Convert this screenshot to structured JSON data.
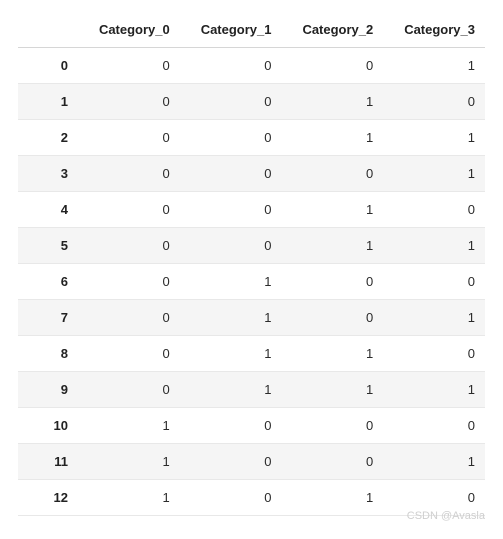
{
  "table": {
    "type": "table",
    "columns": [
      "Category_0",
      "Category_1",
      "Category_2",
      "Category_3"
    ],
    "index": [
      "0",
      "1",
      "2",
      "3",
      "4",
      "5",
      "6",
      "7",
      "8",
      "9",
      "10",
      "11",
      "12"
    ],
    "rows": [
      [
        0,
        0,
        0,
        1
      ],
      [
        0,
        0,
        1,
        0
      ],
      [
        0,
        0,
        1,
        1
      ],
      [
        0,
        0,
        0,
        1
      ],
      [
        0,
        0,
        1,
        0
      ],
      [
        0,
        0,
        1,
        1
      ],
      [
        0,
        1,
        0,
        0
      ],
      [
        0,
        1,
        0,
        1
      ],
      [
        0,
        1,
        1,
        0
      ],
      [
        0,
        1,
        1,
        1
      ],
      [
        1,
        0,
        0,
        0
      ],
      [
        1,
        0,
        0,
        1
      ],
      [
        1,
        0,
        1,
        0
      ]
    ],
    "header_fontsize": 13,
    "cell_fontsize": 13,
    "header_bg": "#ffffff",
    "row_even_bg": "#ffffff",
    "row_odd_bg": "#f5f5f5",
    "border_color": "#e8e8e8",
    "header_border_color": "#d6d6d6",
    "text_color": "#2b2b2b",
    "index_bold": true
  },
  "watermark": "CSDN @Avasla"
}
